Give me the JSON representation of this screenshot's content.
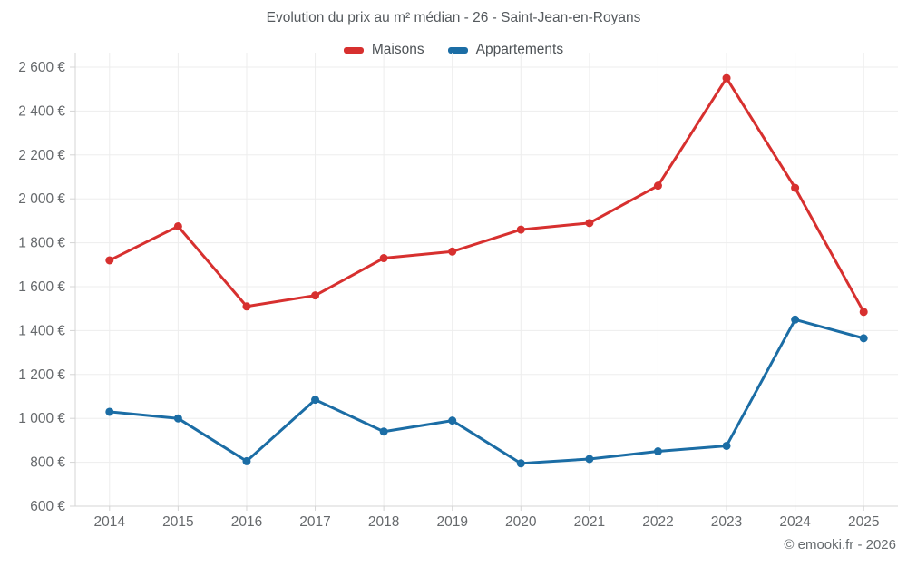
{
  "watermark": "© emooki.fr - 2026",
  "colors": {
    "grid": "#ededed",
    "axis": "#d4d4d4",
    "tick_text": "#66696c",
    "title_text": "#555a5e"
  },
  "chart_data": {
    "type": "line",
    "title": "Evolution du prix au m² médian - 26 - Saint-Jean-en-Royans",
    "categories": [
      "2014",
      "2015",
      "2016",
      "2017",
      "2018",
      "2019",
      "2020",
      "2021",
      "2022",
      "2023",
      "2024",
      "2025"
    ],
    "series": [
      {
        "name": "Maisons",
        "color": "#d7302f",
        "values": [
          1720,
          1875,
          1510,
          1560,
          1730,
          1760,
          1860,
          1890,
          2060,
          2550,
          2050,
          1485
        ]
      },
      {
        "name": "Appartements",
        "color": "#1b6da5",
        "values": [
          1030,
          1000,
          805,
          1085,
          940,
          990,
          795,
          815,
          850,
          875,
          1450,
          1365
        ]
      }
    ],
    "ylim": [
      600,
      2600
    ],
    "ytick_step": 200,
    "ytick_suffix": " €",
    "grid": true,
    "legend_position": "top",
    "marker_radius": 4.5,
    "line_width": 3
  }
}
